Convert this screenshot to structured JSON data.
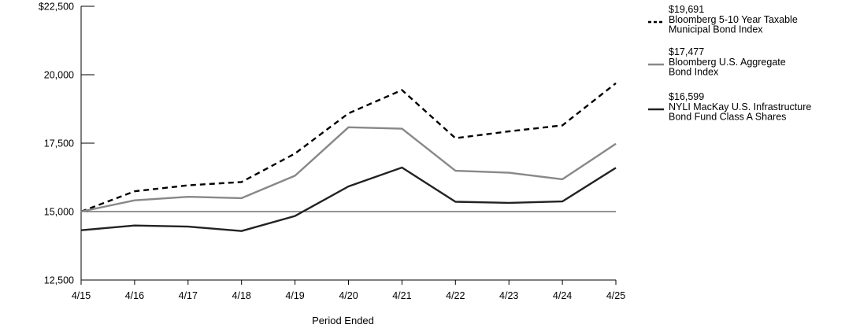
{
  "chart_data": {
    "type": "line",
    "title": "",
    "xlabel": "Period Ended",
    "ylabel": "",
    "categories": [
      "4/15",
      "4/16",
      "4/17",
      "4/18",
      "4/19",
      "4/20",
      "4/21",
      "4/22",
      "4/23",
      "4/24",
      "4/25"
    ],
    "ylim": [
      12500,
      22500
    ],
    "yticks": [
      12500,
      15000,
      17500,
      20000,
      22500
    ],
    "ytick_labels": [
      "12,500",
      "15,000",
      "17,500",
      "20,000",
      "$22,500"
    ],
    "reference_line": 15000,
    "series": [
      {
        "name": "Bloomberg 5-10 Year Taxable Municipal Bond Index",
        "name_lines": [
          "Bloomberg 5-10 Year Taxable",
          "Municipal Bond Index"
        ],
        "ending_value": "$19,691",
        "color": "#000000",
        "style": "dashed",
        "values": [
          15000,
          15740,
          15960,
          16080,
          17120,
          18590,
          19440,
          17680,
          17930,
          18150,
          19691
        ]
      },
      {
        "name": "Bloomberg U.S. Aggregate Bond Index",
        "name_lines": [
          "Bloomberg U.S. Aggregate",
          "Bond Index"
        ],
        "ending_value": "$17,477",
        "color": "#888888",
        "style": "solid",
        "values": [
          15000,
          15410,
          15540,
          15490,
          16310,
          18080,
          18030,
          16490,
          16420,
          16180,
          17477
        ]
      },
      {
        "name": "NYLI MacKay U.S. Infrastructure Bond Fund Class A Shares",
        "name_lines": [
          "NYLI MacKay U.S. Infrastructure",
          "Bond Fund Class A Shares"
        ],
        "ending_value": "$16,599",
        "color": "#222222",
        "style": "solid",
        "values": [
          14320,
          14490,
          14450,
          14290,
          14840,
          15920,
          16610,
          15360,
          15320,
          15370,
          16599
        ]
      }
    ],
    "legend_position": "top-right"
  }
}
